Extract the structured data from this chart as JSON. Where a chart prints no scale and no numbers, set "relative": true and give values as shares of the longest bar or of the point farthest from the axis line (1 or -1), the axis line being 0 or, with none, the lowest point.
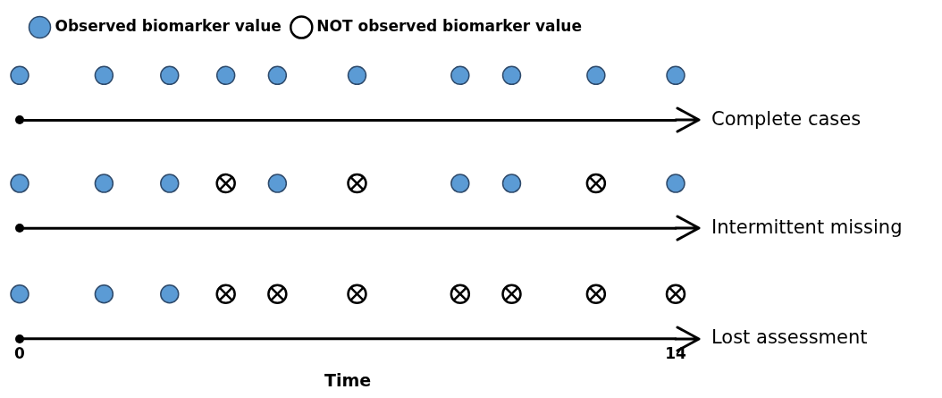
{
  "chart_data": {
    "type": "scatter",
    "xlabel": "Time",
    "relative": true,
    "xlim": [
      0,
      14
    ],
    "xticks": [
      0,
      14
    ],
    "legend": "top left",
    "ref_lines": [
      {
        "axis": "y",
        "value": 0.83,
        "label": "Complete cases",
        "color": "#000000"
      },
      {
        "axis": "y",
        "value": 0.42,
        "label": "Intermittent missing",
        "color": "#000000"
      },
      {
        "axis": "y",
        "value": 0,
        "label": "Lost assessment",
        "color": "#000000"
      }
    ],
    "series": [
      {
        "name": "Observed biomarker value",
        "color": "#5b9bd5",
        "marker": "circle",
        "x": [
          0,
          1.8,
          3.2,
          4.4,
          5.5,
          7.2,
          9.4,
          10.5,
          12.3,
          14,
          0,
          1.8,
          3.2,
          5.5,
          9.4,
          10.5,
          14,
          0,
          1.8,
          3.2
        ],
        "values": [
          1,
          1,
          1,
          1,
          1,
          1,
          1,
          1,
          1,
          1,
          0.59,
          0.59,
          0.59,
          0.59,
          0.59,
          0.59,
          0.59,
          0.17,
          0.17,
          0.17
        ]
      },
      {
        "name": "NOT observed biomarker value",
        "color": "#000000",
        "marker": "circle",
        "x": [
          4.4,
          7.2,
          12.3,
          4.4,
          5.5,
          7.2,
          9.4,
          10.5,
          12.3,
          14
        ],
        "values": [
          0.59,
          0.59,
          0.59,
          0.17,
          0.17,
          0.17,
          0.17,
          0.17,
          0.17,
          0.17
        ]
      }
    ]
  }
}
